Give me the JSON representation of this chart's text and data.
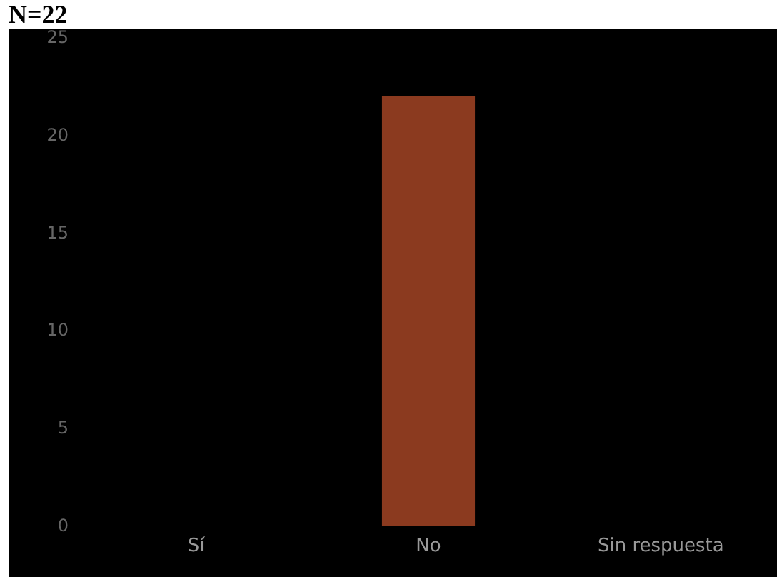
{
  "chart_data": {
    "type": "bar",
    "title": "N=22",
    "categories": [
      "Sí",
      "No",
      "Sin respuesta"
    ],
    "values": [
      0,
      22,
      0
    ],
    "color": "#8b3a1f",
    "ylim": [
      0,
      25
    ],
    "yticks": [
      0,
      5,
      10,
      15,
      20,
      25
    ],
    "grid": false
  }
}
